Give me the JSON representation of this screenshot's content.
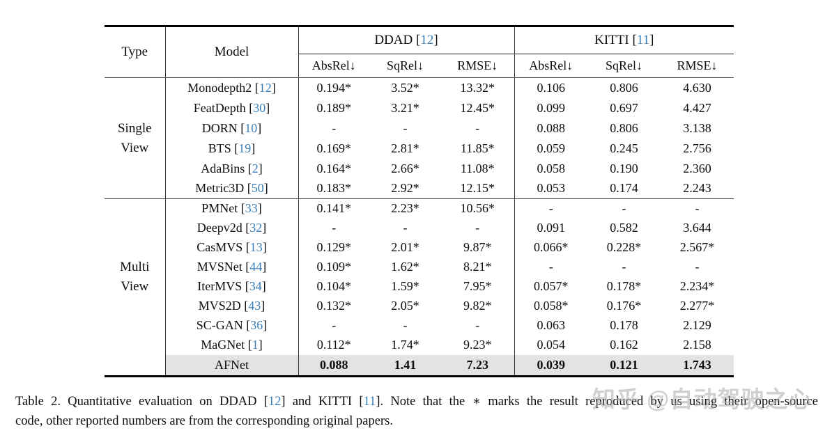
{
  "colors": {
    "cite": "#3a7fba",
    "highlight_row_bg": "#e3e3e3",
    "watermark": "#aaaaaa"
  },
  "cite_format": {
    "open": " [",
    "close": "]"
  },
  "table": {
    "header": {
      "type_label": "Type",
      "model_label": "Model",
      "groups": [
        {
          "name": "DDAD",
          "cite": "12"
        },
        {
          "name": "KITTI",
          "cite": "11"
        }
      ],
      "metric_labels": [
        "AbsRel↓",
        "SqRel↓",
        "RMSE↓"
      ]
    },
    "sections": [
      {
        "label_lines": [
          "Single",
          "View"
        ],
        "rows": [
          {
            "model": "Monodepth2",
            "cite": "12",
            "ddad": [
              "0.194*",
              "3.52*",
              "13.32*"
            ],
            "kitti": [
              "0.106",
              "0.806",
              "4.630"
            ]
          },
          {
            "model": "FeatDepth",
            "cite": "30",
            "ddad": [
              "0.189*",
              "3.21*",
              "12.45*"
            ],
            "kitti": [
              "0.099",
              "0.697",
              "4.427"
            ]
          },
          {
            "model": "DORN",
            "cite": "10",
            "ddad": [
              "-",
              "-",
              "-"
            ],
            "kitti": [
              "0.088",
              "0.806",
              "3.138"
            ]
          },
          {
            "model": "BTS",
            "cite": "19",
            "ddad": [
              "0.169*",
              "2.81*",
              "11.85*"
            ],
            "kitti": [
              "0.059",
              "0.245",
              "2.756"
            ]
          },
          {
            "model": "AdaBins",
            "cite": "2",
            "ddad": [
              "0.164*",
              "2.66*",
              "11.08*"
            ],
            "kitti": [
              "0.058",
              "0.190",
              "2.360"
            ]
          },
          {
            "model": "Metric3D",
            "cite": "50",
            "ddad": [
              "0.183*",
              "2.92*",
              "12.15*"
            ],
            "kitti": [
              "0.053",
              "0.174",
              "2.243"
            ]
          }
        ]
      },
      {
        "label_lines": [
          "Multi",
          "View"
        ],
        "rows": [
          {
            "model": "PMNet",
            "cite": "33",
            "ddad": [
              "0.141*",
              "2.23*",
              "10.56*"
            ],
            "kitti": [
              "-",
              "-",
              "-"
            ]
          },
          {
            "model": "Deepv2d",
            "cite": "32",
            "ddad": [
              "-",
              "-",
              "-"
            ],
            "kitti": [
              "0.091",
              "0.582",
              "3.644"
            ]
          },
          {
            "model": "CasMVS",
            "cite": "13",
            "ddad": [
              "0.129*",
              "2.01*",
              "9.87*"
            ],
            "kitti": [
              "0.066*",
              "0.228*",
              "2.567*"
            ]
          },
          {
            "model": "MVSNet",
            "cite": "44",
            "ddad": [
              "0.109*",
              "1.62*",
              "8.21*"
            ],
            "kitti": [
              "-",
              "-",
              "-"
            ]
          },
          {
            "model": "IterMVS",
            "cite": "34",
            "ddad": [
              "0.104*",
              "1.59*",
              "7.95*"
            ],
            "kitti": [
              "0.057*",
              "0.178*",
              "2.234*"
            ]
          },
          {
            "model": "MVS2D",
            "cite": "43",
            "ddad": [
              "0.132*",
              "2.05*",
              "9.82*"
            ],
            "kitti": [
              "0.058*",
              "0.176*",
              "2.277*"
            ]
          },
          {
            "model": "SC-GAN",
            "cite": "36",
            "ddad": [
              "-",
              "-",
              "-"
            ],
            "kitti": [
              "0.063",
              "0.178",
              "2.129"
            ]
          },
          {
            "model": "MaGNet",
            "cite": "1",
            "ddad": [
              "0.112*",
              "1.74*",
              "9.23*"
            ],
            "kitti": [
              "0.054",
              "0.162",
              "2.158"
            ]
          }
        ]
      }
    ],
    "highlight_row": {
      "model": "AFNet",
      "ddad": [
        "0.088",
        "1.41",
        "7.23"
      ],
      "kitti": [
        "0.039",
        "0.121",
        "1.743"
      ]
    }
  },
  "caption": {
    "line1_segments": [
      {
        "t": "Table 2. Quantitative evaluation on DDAD [",
        "cite": false
      },
      {
        "t": "12",
        "cite": true
      },
      {
        "t": "] and KITTI [",
        "cite": false
      },
      {
        "t": "11",
        "cite": true
      },
      {
        "t": "]. Note that the ∗ marks the result reproduced by us using their open-source",
        "cite": false
      }
    ],
    "line2": "code, other reported numbers are from the corresponding original papers."
  },
  "watermark": {
    "text": "知乎 @自动驾驶之心"
  }
}
